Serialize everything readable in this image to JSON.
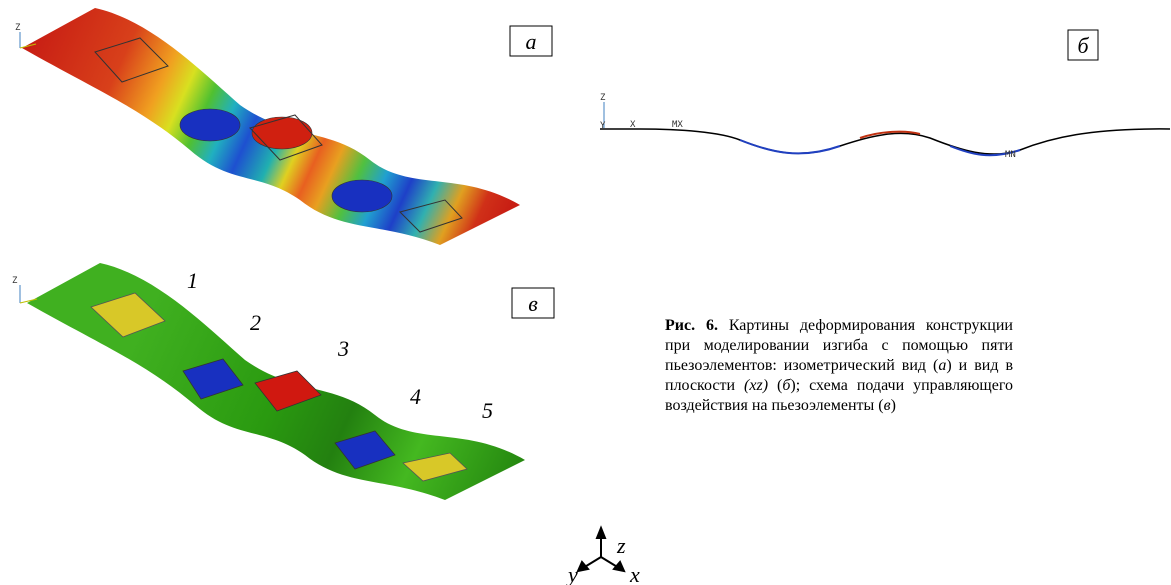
{
  "panels": {
    "a": {
      "label": "а",
      "axis": "Z"
    },
    "b": {
      "label": "б",
      "axis_z": "Z",
      "axis_y": "Y",
      "axis_x": "X",
      "max": "MX",
      "min": "MN"
    },
    "v": {
      "label": "в",
      "axis": "Z",
      "elements": [
        "1",
        "2",
        "3",
        "4",
        "5"
      ]
    }
  },
  "caption": [
    "Рис. 6.",
    " Картины деформирования конструкции при моделировании изгиба с помощью пяти пьезоэлементов: изометрический вид (",
    "а",
    ") и вид в плоскости ",
    "(xz)",
    " (",
    "б",
    "); схема подачи управляющего воздействия на пьезоэлементы (",
    "в",
    ")"
  ],
  "triad": {
    "z": "z",
    "y": "y",
    "x": "x"
  }
}
